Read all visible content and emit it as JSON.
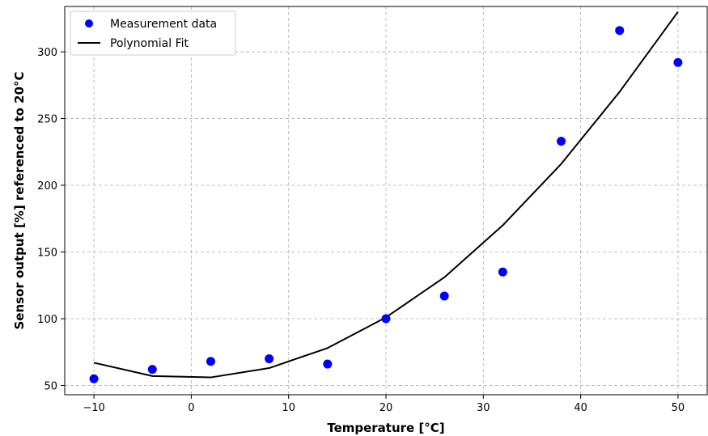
{
  "chart_data": {
    "type": "scatter",
    "xlabel": "Temperature [°C]",
    "ylabel": "Sensor output [%] referenced to 20°C",
    "xlim": [
      -13,
      53
    ],
    "ylim": [
      43,
      334
    ],
    "x_ticks": [
      -10,
      0,
      10,
      20,
      30,
      40,
      50
    ],
    "x_tick_labels": [
      "−10",
      "0",
      "10",
      "20",
      "30",
      "40",
      "50"
    ],
    "y_ticks": [
      50,
      100,
      150,
      200,
      250,
      300
    ],
    "y_tick_labels": [
      "50",
      "100",
      "150",
      "200",
      "250",
      "300"
    ],
    "grid": true,
    "legend_position": "top-left",
    "series": [
      {
        "name": "Measurement data",
        "kind": "scatter",
        "color": "#0000ff",
        "x": [
          -10,
          -4,
          2,
          8,
          14,
          20,
          26,
          32,
          38,
          44,
          50
        ],
        "y": [
          55,
          62,
          68,
          70,
          66,
          100,
          117,
          135,
          233,
          316,
          292
        ]
      },
      {
        "name": "Polynomial Fit",
        "kind": "line",
        "color": "#000000",
        "x": [
          -10,
          -4,
          2,
          8,
          14,
          20,
          26,
          32,
          38,
          44,
          50
        ],
        "y": [
          67,
          57,
          56,
          63,
          78,
          101,
          131,
          170,
          216,
          270,
          330
        ]
      }
    ]
  }
}
